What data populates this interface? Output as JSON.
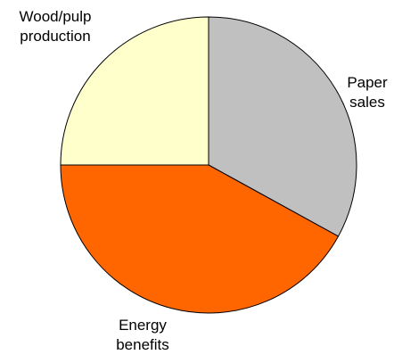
{
  "chart_data": {
    "type": "pie",
    "title": "",
    "slices": [
      {
        "label_lines": [
          "Paper",
          "sales"
        ],
        "value": 33,
        "color": "#c0c0c0"
      },
      {
        "label_lines": [
          "Energy",
          "benefits"
        ],
        "value": 42,
        "color": "#ff6600"
      },
      {
        "label_lines": [
          "Wood/pulp",
          "production"
        ],
        "value": 25,
        "color": "#ffffcc"
      }
    ],
    "start_angle_deg": 0,
    "direction": "clockwise",
    "legend": "none"
  }
}
